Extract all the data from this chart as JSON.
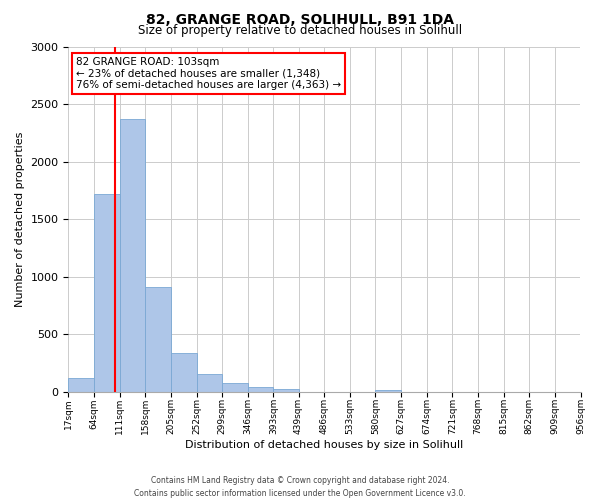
{
  "title": "82, GRANGE ROAD, SOLIHULL, B91 1DA",
  "subtitle": "Size of property relative to detached houses in Solihull",
  "xlabel": "Distribution of detached houses by size in Solihull",
  "ylabel": "Number of detached properties",
  "bin_edges": [
    17,
    64,
    111,
    158,
    205,
    252,
    299,
    346,
    393,
    439,
    486,
    533,
    580,
    627,
    674,
    721,
    768,
    815,
    862,
    909,
    956
  ],
  "bar_heights": [
    120,
    1720,
    2370,
    910,
    340,
    155,
    80,
    40,
    25,
    0,
    0,
    0,
    20,
    0,
    0,
    0,
    0,
    0,
    0,
    0
  ],
  "bar_color": "#aec6e8",
  "bar_edge_color": "#7aa8d4",
  "vline_x": 103,
  "vline_color": "red",
  "annotation_line1": "82 GRANGE ROAD: 103sqm",
  "annotation_line2": "← 23% of detached houses are smaller (1,348)",
  "annotation_line3": "76% of semi-detached houses are larger (4,363) →",
  "ylim": [
    0,
    3000
  ],
  "yticks": [
    0,
    500,
    1000,
    1500,
    2000,
    2500,
    3000
  ],
  "tick_labels": [
    "17sqm",
    "64sqm",
    "111sqm",
    "158sqm",
    "205sqm",
    "252sqm",
    "299sqm",
    "346sqm",
    "393sqm",
    "439sqm",
    "486sqm",
    "533sqm",
    "580sqm",
    "627sqm",
    "674sqm",
    "721sqm",
    "768sqm",
    "815sqm",
    "862sqm",
    "909sqm",
    "956sqm"
  ],
  "footer_line1": "Contains HM Land Registry data © Crown copyright and database right 2024.",
  "footer_line2": "Contains public sector information licensed under the Open Government Licence v3.0.",
  "background_color": "#ffffff",
  "grid_color": "#cccccc",
  "title_fontsize": 10,
  "subtitle_fontsize": 8.5,
  "xlabel_fontsize": 8,
  "ylabel_fontsize": 8,
  "annot_fontsize": 7.5,
  "footer_fontsize": 5.5
}
